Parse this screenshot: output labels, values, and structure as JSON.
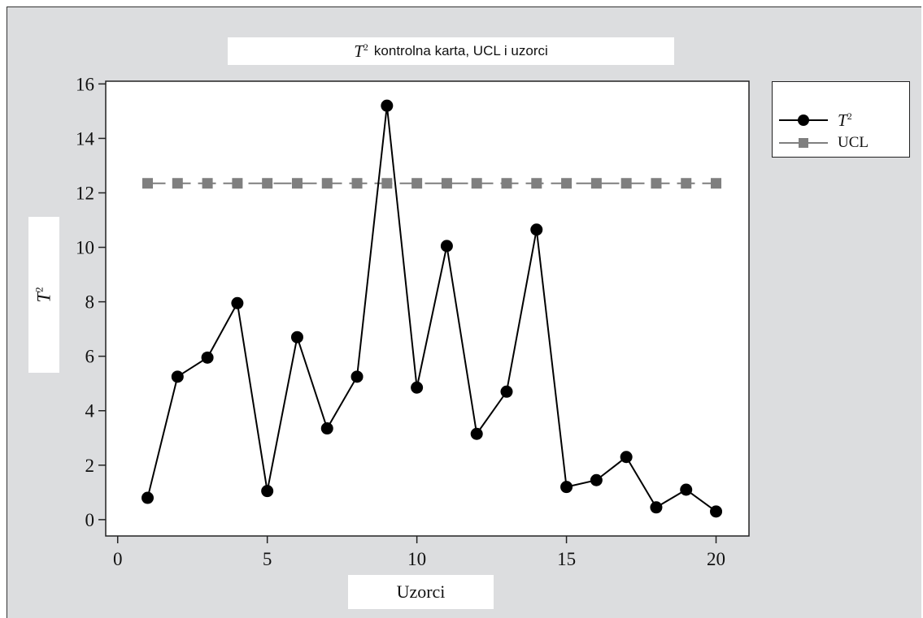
{
  "chart_data": {
    "type": "line",
    "title_symbol": "T",
    "title_superscript": "2",
    "title_text": "kontrolna karta, UCL i uzorci",
    "xlabel": "Uzorci",
    "ylabel_symbol": "T",
    "ylabel_superscript": "2",
    "xlim": [
      -0.4,
      21.1
    ],
    "ylim": [
      -0.6,
      16.1
    ],
    "x_ticks": [
      0,
      5,
      10,
      15,
      20
    ],
    "y_ticks": [
      0,
      2,
      4,
      6,
      8,
      10,
      12,
      14,
      16
    ],
    "x_tick_labels": [
      "0",
      "5",
      "10",
      "15",
      "20"
    ],
    "y_tick_labels": [
      "0",
      "2",
      "4",
      "6",
      "8",
      "10",
      "12",
      "14",
      "16"
    ],
    "grid": false,
    "legend_position": "outside-right",
    "x": [
      1,
      2,
      3,
      4,
      5,
      6,
      7,
      8,
      9,
      10,
      11,
      12,
      13,
      14,
      15,
      16,
      17,
      18,
      19,
      20
    ],
    "series": [
      {
        "name_symbol": "T",
        "name_superscript": "2",
        "marker": "circle",
        "color": "#000000",
        "line_style": "solid",
        "values": [
          0.8,
          5.25,
          5.95,
          7.95,
          1.05,
          6.7,
          3.35,
          5.25,
          15.2,
          4.85,
          10.05,
          3.15,
          4.7,
          10.65,
          1.2,
          1.45,
          2.3,
          0.45,
          1.1,
          0.3
        ]
      },
      {
        "name": "UCL",
        "marker": "square",
        "color": "#7f7f7f",
        "line_style": "dashed",
        "values": [
          12.35,
          12.35,
          12.35,
          12.35,
          12.35,
          12.35,
          12.35,
          12.35,
          12.35,
          12.35,
          12.35,
          12.35,
          12.35,
          12.35,
          12.35,
          12.35,
          12.35,
          12.35,
          12.35,
          12.35
        ]
      }
    ]
  }
}
